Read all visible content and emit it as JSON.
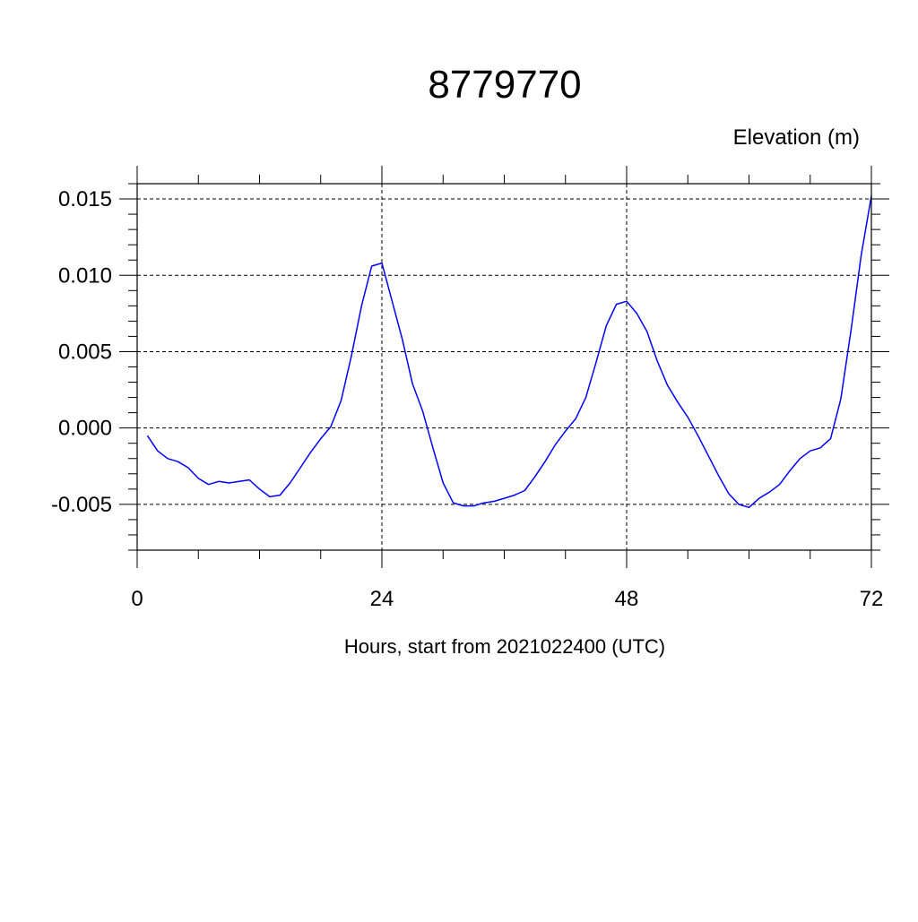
{
  "chart_data": {
    "type": "line",
    "title": "8779770",
    "ylabel": "Elevation (m)",
    "xlabel": "Hours, start from 2021022400 (UTC)",
    "xlim": [
      0,
      72
    ],
    "ylim": [
      -0.008,
      0.016
    ],
    "xticks": [
      0,
      24,
      48,
      72
    ],
    "xtick_labels": [
      "0",
      "24",
      "48",
      "72"
    ],
    "yticks": [
      -0.005,
      0.0,
      0.005,
      0.01,
      0.015
    ],
    "ytick_labels": [
      "-0.005",
      "0.000",
      "0.005",
      "0.010",
      "0.015"
    ],
    "grid": true,
    "series": [
      {
        "color": "#0000ff",
        "x": [
          1,
          2,
          3,
          4,
          5,
          6,
          7,
          8,
          9,
          10,
          11,
          12,
          13,
          14,
          15,
          16,
          17,
          18,
          19,
          20,
          21,
          22,
          23,
          24,
          25,
          26,
          27,
          28,
          29,
          30,
          31,
          32,
          33,
          34,
          35,
          36,
          37,
          38,
          39,
          40,
          41,
          42,
          43,
          44,
          45,
          46,
          47,
          48,
          49,
          50,
          51,
          52,
          53,
          54,
          55,
          56,
          57,
          58,
          59,
          60,
          61,
          62,
          63,
          64,
          65,
          66,
          67,
          68,
          69,
          70,
          71,
          72
        ],
        "y": [
          -0.0005,
          -0.0015,
          -0.002,
          -0.0022,
          -0.0026,
          -0.0033,
          -0.0037,
          -0.0035,
          -0.0036,
          -0.0035,
          -0.0034,
          -0.004,
          -0.0045,
          -0.0044,
          -0.0036,
          -0.0026,
          -0.0016,
          -0.0007,
          0.0001,
          0.0018,
          0.0047,
          0.008,
          0.0106,
          0.0108,
          0.0083,
          0.0058,
          0.0029,
          0.0011,
          -0.0013,
          -0.0036,
          -0.0049,
          -0.0051,
          -0.0051,
          -0.0049,
          -0.0048,
          -0.0046,
          -0.0044,
          -0.0041,
          -0.0032,
          -0.0022,
          -0.0011,
          -0.0002,
          0.0006,
          0.002,
          0.0043,
          0.0067,
          0.0081,
          0.0083,
          0.0075,
          0.0063,
          0.0044,
          0.0028,
          0.0017,
          0.0007,
          -0.0005,
          -0.0018,
          -0.0031,
          -0.0043,
          -0.005,
          -0.0052,
          -0.0046,
          -0.0042,
          -0.0037,
          -0.0028,
          -0.002,
          -0.0015,
          -0.0013,
          -0.0007,
          0.0019,
          0.0064,
          0.0113,
          0.0152
        ]
      }
    ]
  }
}
